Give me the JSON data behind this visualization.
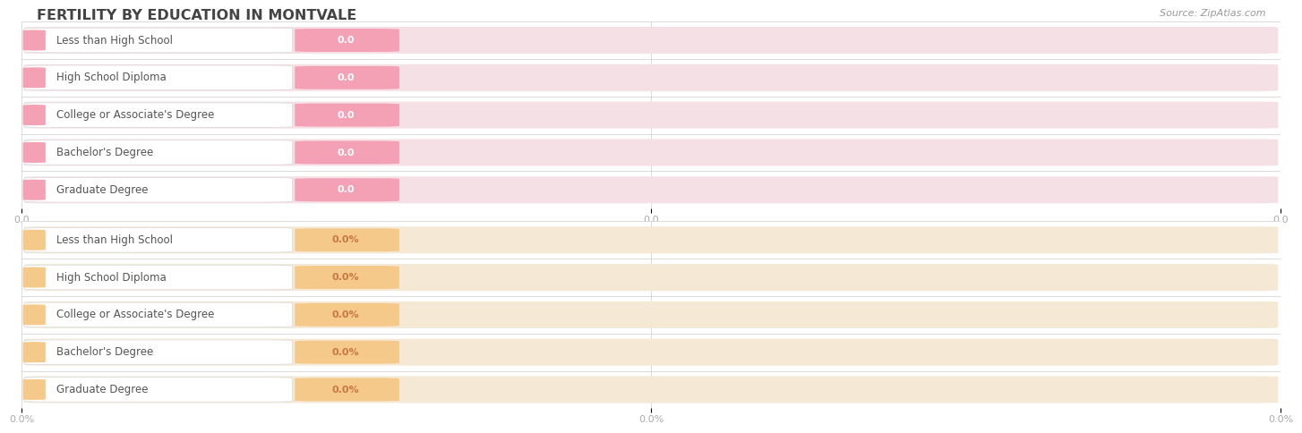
{
  "title": "FERTILITY BY EDUCATION IN MONTVALE",
  "source": "Source: ZipAtlas.com",
  "top_categories": [
    "Less than High School",
    "High School Diploma",
    "College or Associate's Degree",
    "Bachelor's Degree",
    "Graduate Degree"
  ],
  "top_values": [
    0.0,
    0.0,
    0.0,
    0.0,
    0.0
  ],
  "top_labels": [
    "0.0",
    "0.0",
    "0.0",
    "0.0",
    "0.0"
  ],
  "top_bar_color": "#f4a0b5",
  "top_bg_color": "#f5e0e5",
  "top_label_color": "#ffffff",
  "bottom_categories": [
    "Less than High School",
    "High School Diploma",
    "College or Associate's Degree",
    "Bachelor's Degree",
    "Graduate Degree"
  ],
  "bottom_values": [
    0.0,
    0.0,
    0.0,
    0.0,
    0.0
  ],
  "bottom_labels": [
    "0.0%",
    "0.0%",
    "0.0%",
    "0.0%",
    "0.0%"
  ],
  "bottom_bar_color": "#f5c98a",
  "bottom_bg_color": "#f5e8d5",
  "bottom_label_color": "#c87941",
  "axis_tick_color": "#aaaaaa",
  "grid_color": "#cccccc",
  "background_color": "#ffffff",
  "title_color": "#444444",
  "label_text_color": "#555555",
  "bar_max": 1.0,
  "tick_labels_top": [
    "0.0",
    "0.0",
    "0.0"
  ],
  "tick_labels_bottom": [
    "0.0%",
    "0.0%",
    "0.0%"
  ]
}
